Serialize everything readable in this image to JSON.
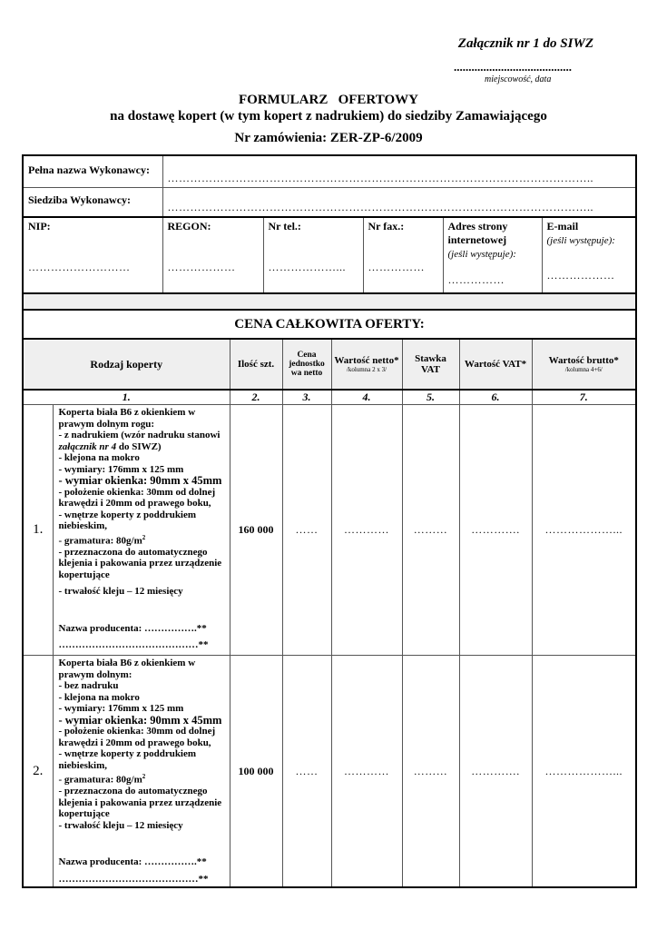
{
  "header": {
    "attachment": "Załącznik nr 1 do SIWZ",
    "place_dots": "........................................",
    "place_label": "miejscowość, data",
    "title": "FORMULARZ   OFERTOWY",
    "subtitle": "na dostawę kopert (w tym kopert z nadrukiem) do siedziby Zamawiającego",
    "order_no": "Nr zamówienia: ZER-ZP-6/2009"
  },
  "contractor": {
    "name_label": "Pełna nazwa Wykonawcy:",
    "name_dots": "…………………………………………………………………………………………………..",
    "seat_label": "Siedziba Wykonawcy:",
    "seat_dots": "…………………………………………………………………………………………………..",
    "fields": [
      {
        "label": "NIP:",
        "note": "",
        "dots": "………………………"
      },
      {
        "label": "REGON:",
        "note": "",
        "dots": "………………"
      },
      {
        "label": "Nr tel.:",
        "note": "",
        "dots": "………………..."
      },
      {
        "label": "Nr fax.:",
        "note": "",
        "dots": "……………"
      },
      {
        "label": "Adres strony internetowej",
        "note": "(jeśli występuje):",
        "dots": "……………"
      },
      {
        "label": "E-mail",
        "note": "(jeśli występuje):",
        "dots": "………………"
      }
    ]
  },
  "price_section": {
    "title": "CENA CAŁKOWITA OFERTY:",
    "columns": [
      {
        "label": "Rodzaj koperty",
        "sub": "",
        "num": "1."
      },
      {
        "label": "Ilość szt.",
        "sub": "",
        "num": "2."
      },
      {
        "label": "Cena jednostko wa netto",
        "sub": "",
        "num": "3."
      },
      {
        "label": "Wartość netto*",
        "sub": "/kolumna 2 x 3/",
        "num": "4."
      },
      {
        "label": "Stawka VAT",
        "sub": "",
        "num": "5."
      },
      {
        "label": "Wartość VAT*",
        "sub": "",
        "num": "6."
      },
      {
        "label": "Wartość brutto*",
        "sub": "/kolumna 4+6/",
        "num": "7."
      }
    ],
    "rows": [
      {
        "lp": "1.",
        "lines": [
          "Koperta biała B6 z okienkiem w prawym dolnym rogu:",
          "- z nadrukiem (wzór nadruku stanowi ",
          "załącznik nr 4",
          " do SIWZ)",
          "- klejona na mokro",
          "- wymiary: 176mm x 125 mm",
          "- wymiar okienka: 90mm x 45mm",
          "- położenie okienka: 30mm od dolnej krawędzi i 20mm od prawego boku,",
          "- wnętrze koperty z poddrukiem niebieskim,",
          "- gramatura: 80g/m",
          "2",
          "- przeznaczona do automatycznego klejenia i pakowania przez urządzenie kopertujące",
          "- trwałość kleju – 12 miesięcy",
          "Nazwa producenta: …………….**",
          "……………………………………**"
        ],
        "qty": "160 000",
        "unit": "……",
        "net": "…………",
        "vat_rate": "………",
        "vat": "………….",
        "gross": "………………..."
      },
      {
        "lp": "2.",
        "lines": [
          "Koperta biała B6 z okienkiem w prawym dolnym:",
          "- bez nadruku",
          "- klejona na mokro",
          "- wymiary: 176mm x 125 mm",
          "- wymiar okienka: 90mm x 45mm",
          "- położenie okienka: 30mm od dolnej krawędzi i 20mm od prawego boku,",
          "- wnętrze koperty z poddrukiem niebieskim,",
          "- gramatura: 80g/m",
          "2",
          "- przeznaczona do automatycznego klejenia i pakowania przez urządzenie kopertujące",
          "- trwałość kleju – 12 miesięcy",
          "Nazwa producenta: …………….**",
          "……………………………………**"
        ],
        "qty": "100 000",
        "unit": "……",
        "net": "…………",
        "vat_rate": "………",
        "vat": "………….",
        "gross": "………………..."
      }
    ]
  }
}
